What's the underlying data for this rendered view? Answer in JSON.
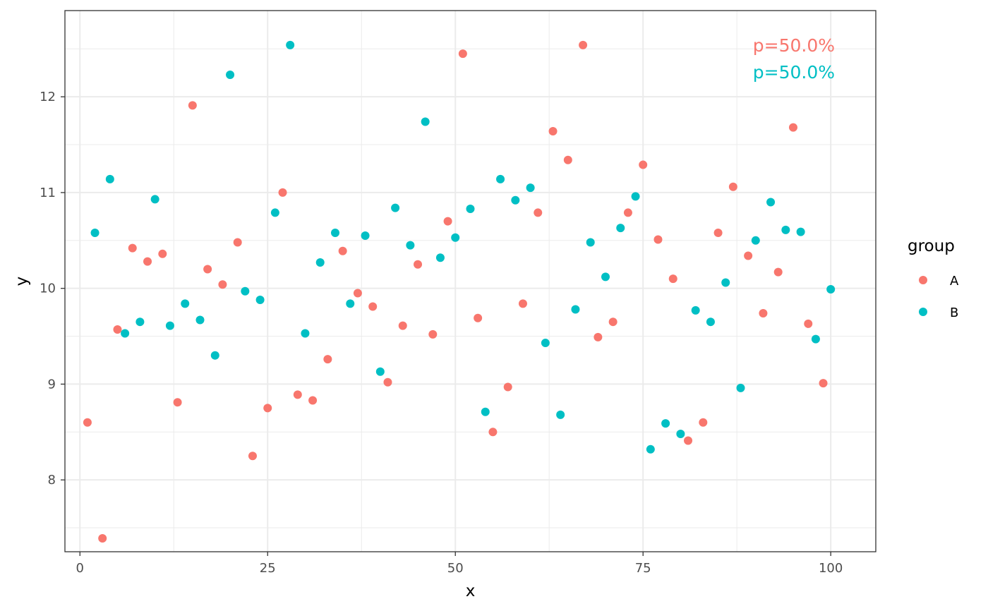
{
  "chart_data": {
    "type": "scatter",
    "xlabel": "x",
    "ylabel": "y",
    "xlim": [
      -2,
      106
    ],
    "ylim": [
      7.25,
      12.9
    ],
    "x_ticks": [
      0,
      25,
      50,
      75,
      100
    ],
    "x_minor_ticks": [
      12.5,
      37.5,
      62.5,
      87.5
    ],
    "y_ticks": [
      8,
      9,
      10,
      11,
      12
    ],
    "y_minor_ticks": [
      7.5,
      8.5,
      9.5,
      10.5,
      11.5,
      12.5
    ],
    "grid": true,
    "legend": {
      "title": "group",
      "position": "right",
      "entries": [
        "A",
        "B"
      ]
    },
    "annotations": [
      {
        "text": "p=50.0%",
        "series": "A"
      },
      {
        "text": "p=50.0%",
        "series": "B"
      }
    ],
    "series": [
      {
        "name": "A",
        "color": "#F8766D",
        "x": [
          1,
          3,
          5,
          7,
          9,
          11,
          13,
          15,
          17,
          19,
          21,
          23,
          25,
          27,
          29,
          31,
          33,
          35,
          37,
          39,
          41,
          43,
          45,
          47,
          49,
          51,
          53,
          55,
          57,
          59,
          61,
          63,
          65,
          67,
          69,
          71,
          73,
          75,
          77,
          79,
          81,
          83,
          85,
          87,
          89,
          91,
          93,
          95,
          97,
          99
        ],
        "y": [
          8.6,
          7.39,
          9.57,
          10.42,
          10.28,
          10.36,
          8.81,
          11.91,
          10.2,
          10.04,
          10.48,
          8.25,
          8.75,
          11.0,
          8.89,
          8.83,
          9.26,
          10.39,
          9.95,
          9.81,
          9.02,
          9.61,
          10.25,
          9.52,
          10.7,
          12.45,
          9.69,
          8.5,
          8.97,
          9.84,
          10.79,
          11.64,
          11.34,
          12.54,
          9.49,
          9.65,
          10.79,
          11.29,
          10.51,
          10.1,
          8.41,
          8.6,
          10.58,
          11.06,
          10.34,
          9.74,
          10.17,
          11.68,
          9.63,
          9.01
        ]
      },
      {
        "name": "B",
        "color": "#00BFC4",
        "x": [
          2,
          4,
          6,
          8,
          10,
          12,
          14,
          16,
          18,
          20,
          22,
          24,
          26,
          28,
          30,
          32,
          34,
          36,
          38,
          40,
          42,
          44,
          46,
          48,
          50,
          52,
          54,
          56,
          58,
          60,
          62,
          64,
          66,
          68,
          70,
          72,
          74,
          76,
          78,
          80,
          82,
          84,
          86,
          88,
          90,
          92,
          94,
          96,
          98,
          100
        ],
        "y": [
          10.58,
          11.14,
          9.53,
          9.65,
          10.93,
          9.61,
          9.84,
          9.67,
          9.3,
          12.23,
          9.97,
          9.88,
          10.79,
          12.54,
          9.53,
          10.27,
          10.58,
          9.84,
          10.55,
          9.13,
          10.84,
          10.45,
          11.74,
          10.32,
          10.53,
          10.83,
          8.71,
          11.14,
          10.92,
          11.05,
          9.43,
          8.68,
          9.78,
          10.48,
          10.12,
          10.63,
          10.96,
          8.32,
          8.59,
          8.48,
          9.77,
          9.65,
          10.06,
          8.96,
          10.5,
          10.9,
          10.61,
          10.59,
          9.47,
          9.99
        ]
      }
    ]
  }
}
